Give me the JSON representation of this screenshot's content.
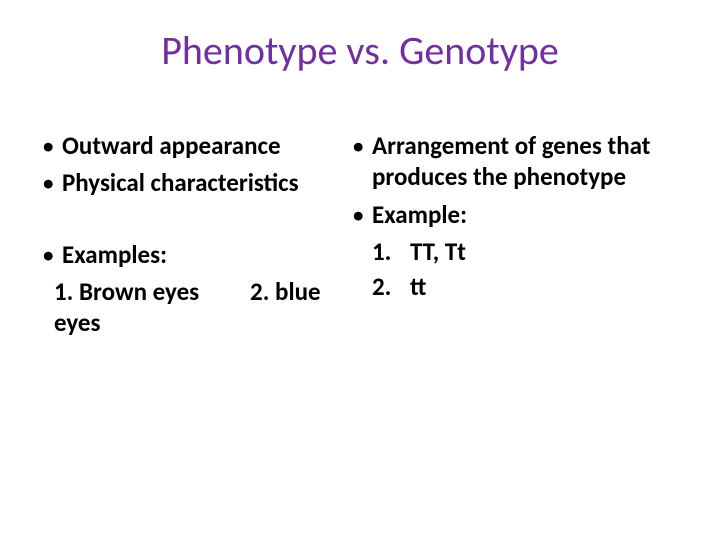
{
  "title": {
    "text": "Phenotype  vs. Genotype",
    "color": "#7030a0",
    "fontsize_pt": 40
  },
  "body": {
    "text_color": "#000000",
    "fontsize_pt": 25
  },
  "left": {
    "bullets": [
      "Outward appearance",
      "Physical characteristics"
    ],
    "examples_label": "Examples:",
    "examples_line_parts": [
      "1. Brown eyes",
      "2. blue eyes"
    ]
  },
  "right": {
    "bullets": [
      "Arrangement of genes that produces the phenotype",
      "Example:"
    ],
    "numbered": [
      {
        "n": "1.",
        "text": "TT, Tt"
      },
      {
        "n": "2.",
        "text": "tt"
      }
    ]
  },
  "colors": {
    "background": "#ffffff",
    "title": "#7030a0",
    "body": "#000000"
  }
}
